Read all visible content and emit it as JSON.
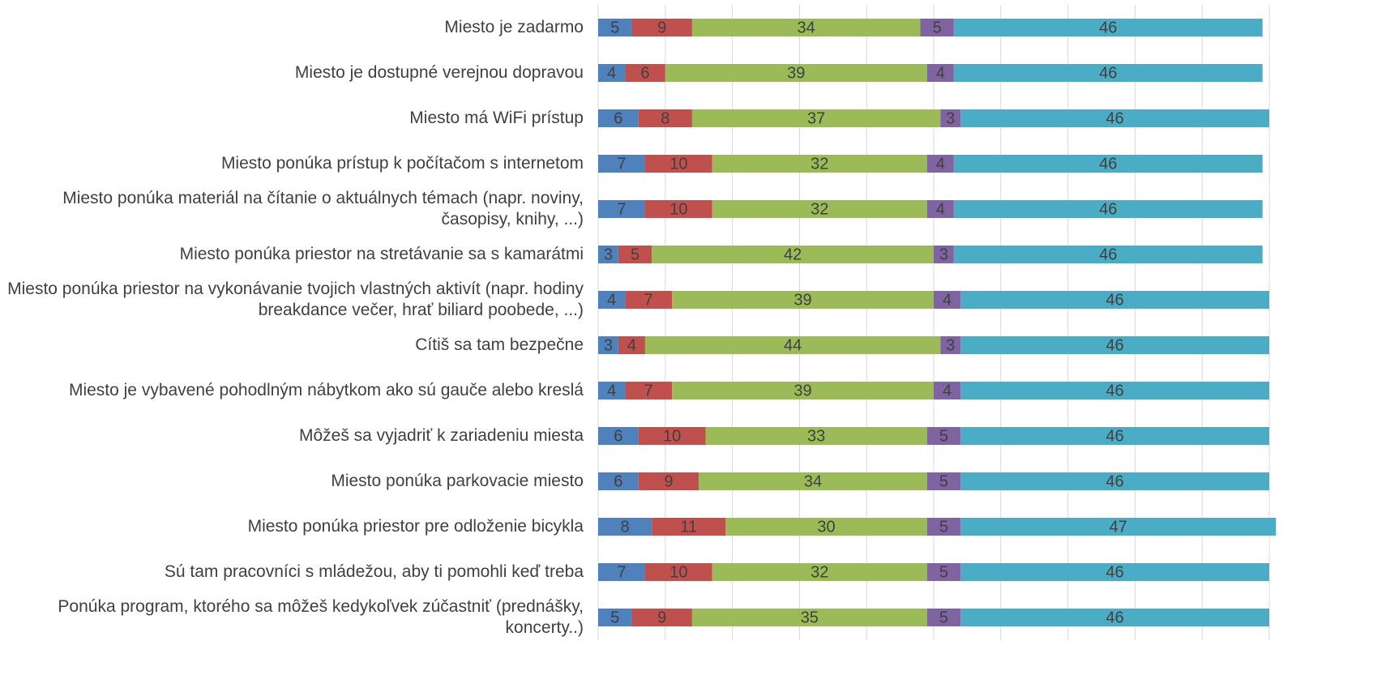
{
  "chart_data": {
    "type": "stacked_barh",
    "categories": [
      "Miesto je zadarmo",
      "Miesto je dostupné verejnou dopravou",
      "Miesto má WiFi prístup",
      "Miesto ponúka prístup k počítačom s internetom",
      "Miesto ponúka materiál na čítanie o aktuálnych témach (napr. noviny, časopisy, knihy, ...)",
      "Miesto ponúka priestor na stretávanie sa s kamarátmi",
      "Miesto ponúka priestor na vykonávanie tvojich vlastných aktivít (napr. hodiny breakdance večer, hrať biliard poobede, ...)",
      "Cítiš sa tam bezpečne",
      "Miesto je vybavené pohodlným nábytkom ako sú gauče alebo kreslá",
      "Môžeš sa vyjadriť k zariadeniu miesta",
      "Miesto ponúka parkovacie miesto",
      "Miesto ponúka priestor pre odloženie bicykla",
      "Sú tam pracovníci s mládežou, aby ti pomohli keď treba",
      "Ponúka program, ktorého sa môžeš kedykoľvek zúčastniť (prednášky, koncerty..)"
    ],
    "series": [
      {
        "color": "#4f81bd",
        "values": [
          5,
          4,
          6,
          7,
          7,
          3,
          4,
          3,
          4,
          6,
          6,
          8,
          7,
          5
        ]
      },
      {
        "color": "#c0504d",
        "values": [
          9,
          6,
          8,
          10,
          10,
          5,
          7,
          4,
          7,
          10,
          9,
          11,
          10,
          9
        ]
      },
      {
        "color": "#9bbb59",
        "values": [
          34,
          39,
          37,
          32,
          32,
          42,
          39,
          44,
          39,
          33,
          34,
          30,
          32,
          35
        ]
      },
      {
        "color": "#8064a2",
        "values": [
          5,
          4,
          3,
          4,
          4,
          3,
          4,
          3,
          4,
          5,
          5,
          5,
          5,
          5
        ]
      },
      {
        "color": "#4bacc6",
        "values": [
          46,
          46,
          46,
          46,
          46,
          46,
          46,
          46,
          46,
          46,
          46,
          47,
          46,
          46
        ]
      }
    ],
    "xlim": [
      0,
      100
    ],
    "xticks": [
      0,
      10,
      20,
      30,
      40,
      50,
      60,
      70,
      80,
      90,
      100
    ],
    "grid": true
  }
}
